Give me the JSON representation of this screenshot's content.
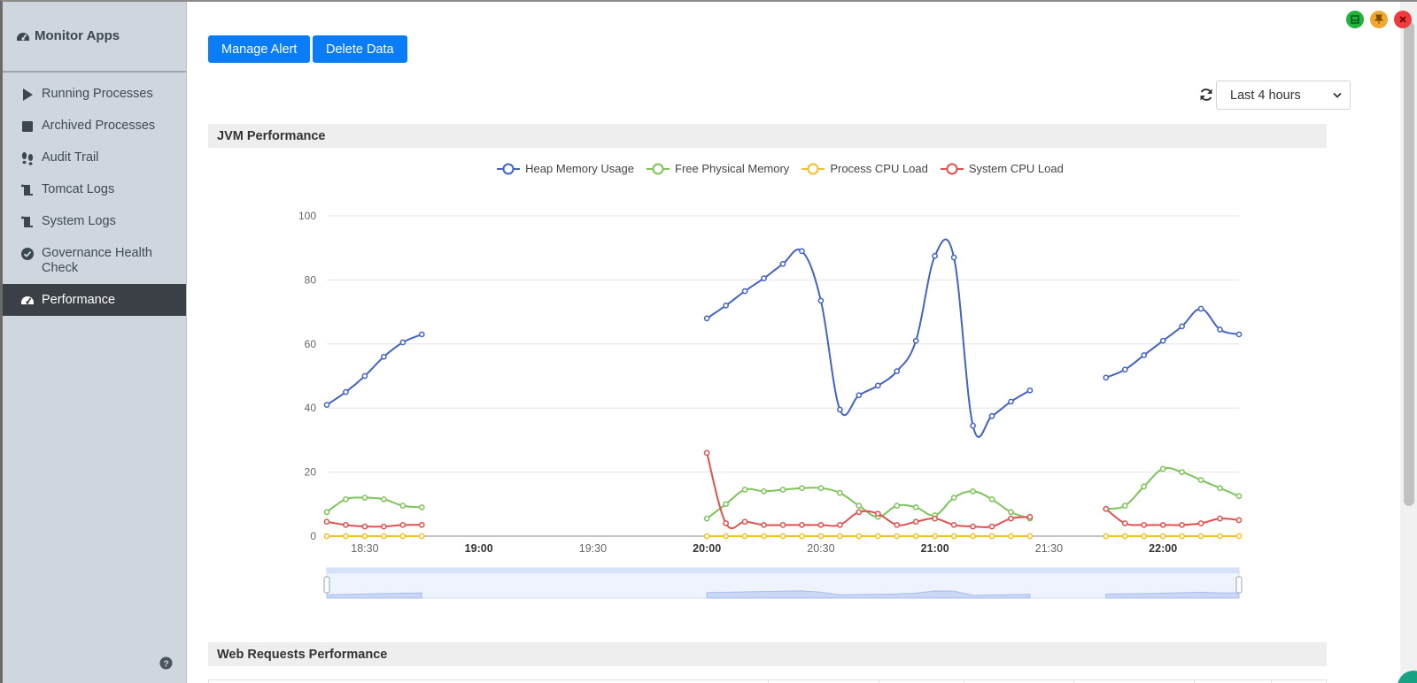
{
  "app": {
    "title": "Monitor Apps"
  },
  "sidebar": {
    "items": [
      {
        "label": "Running Processes",
        "icon": "play-icon"
      },
      {
        "label": "Archived Processes",
        "icon": "stop-icon"
      },
      {
        "label": "Audit Trail",
        "icon": "footprints-icon"
      },
      {
        "label": "Tomcat Logs",
        "icon": "scroll-icon"
      },
      {
        "label": "System Logs",
        "icon": "scroll-icon"
      },
      {
        "label": "Governance Health Check",
        "icon": "check-circle-icon"
      },
      {
        "label": "Performance",
        "icon": "gauge-icon",
        "active": true
      }
    ],
    "help_icon": "question-circle-icon"
  },
  "toolbar": {
    "manage_alert": "Manage Alert",
    "delete_data": "Delete Data"
  },
  "time_range": {
    "selected": "Last 4 hours"
  },
  "panels": {
    "jvm": "JVM Performance",
    "web": "Web Requests Performance"
  },
  "colors": {
    "accent": "#0a7cf5",
    "heap": "#4363c5",
    "free": "#7cc45a",
    "process": "#f5be2e",
    "system": "#e35050"
  },
  "chart_data": {
    "type": "line",
    "x_unit": "time",
    "x_ticks": [
      "18:30",
      "19:00",
      "19:30",
      "20:00",
      "20:30",
      "21:00",
      "21:30",
      "22:00"
    ],
    "ylim": [
      0,
      100
    ],
    "y_ticks": [
      0,
      20,
      40,
      60,
      80,
      100
    ],
    "legend_position": "top-center",
    "series": [
      {
        "name": "Heap Memory Usage",
        "color": "#4363c5",
        "segments": [
          [
            [
              "18:20",
              41
            ],
            [
              "18:25",
              45
            ],
            [
              "18:30",
              50
            ],
            [
              "18:35",
              56
            ],
            [
              "18:40",
              60.5
            ],
            [
              "18:45",
              63
            ]
          ],
          [
            [
              "20:00",
              68
            ],
            [
              "20:05",
              72
            ],
            [
              "20:10",
              76.5
            ],
            [
              "20:15",
              80.5
            ],
            [
              "20:20",
              85
            ],
            [
              "20:25",
              89
            ],
            [
              "20:30",
              73.5
            ],
            [
              "20:35",
              39.5
            ],
            [
              "20:40",
              44
            ],
            [
              "20:45",
              47
            ],
            [
              "20:50",
              51.5
            ],
            [
              "20:55",
              61
            ],
            [
              "21:00",
              87.5
            ],
            [
              "21:05",
              87
            ],
            [
              "21:10",
              34.5
            ],
            [
              "21:15",
              37.5
            ],
            [
              "21:20",
              42
            ],
            [
              "21:25",
              45.5
            ]
          ],
          [
            [
              "21:45",
              49.5
            ],
            [
              "21:50",
              52
            ],
            [
              "21:55",
              56.5
            ],
            [
              "22:00",
              61
            ],
            [
              "22:05",
              65.5
            ],
            [
              "22:10",
              71
            ],
            [
              "22:15",
              64.5
            ],
            [
              "22:20",
              63
            ]
          ]
        ]
      },
      {
        "name": "Free Physical Memory",
        "color": "#7cc45a",
        "segments": [
          [
            [
              "18:20",
              7.5
            ],
            [
              "18:25",
              11.5
            ],
            [
              "18:30",
              12
            ],
            [
              "18:35",
              11.5
            ],
            [
              "18:40",
              9.5
            ],
            [
              "18:45",
              9
            ]
          ],
          [
            [
              "20:00",
              5.5
            ],
            [
              "20:05",
              10
            ],
            [
              "20:10",
              14.5
            ],
            [
              "20:15",
              14
            ],
            [
              "20:20",
              14.5
            ],
            [
              "20:25",
              15
            ],
            [
              "20:30",
              15
            ],
            [
              "20:35",
              13.5
            ],
            [
              "20:40",
              9.5
            ],
            [
              "20:45",
              6
            ],
            [
              "20:50",
              9.5
            ],
            [
              "20:55",
              9
            ],
            [
              "21:00",
              6.5
            ],
            [
              "21:05",
              12
            ],
            [
              "21:10",
              14
            ],
            [
              "21:15",
              11.5
            ],
            [
              "21:20",
              7.5
            ],
            [
              "21:25",
              5.5
            ]
          ],
          [
            [
              "21:45",
              8.5
            ],
            [
              "21:50",
              9.5
            ],
            [
              "21:55",
              15.5
            ],
            [
              "22:00",
              21
            ],
            [
              "22:05",
              20
            ],
            [
              "22:10",
              17.5
            ],
            [
              "22:15",
              15
            ],
            [
              "22:20",
              12.5
            ]
          ]
        ]
      },
      {
        "name": "Process CPU Load",
        "color": "#f5be2e",
        "segments": [
          [
            [
              "18:20",
              0
            ],
            [
              "18:25",
              0
            ],
            [
              "18:30",
              0
            ],
            [
              "18:35",
              0
            ],
            [
              "18:40",
              0
            ],
            [
              "18:45",
              0
            ]
          ],
          [
            [
              "20:00",
              0
            ],
            [
              "20:05",
              0
            ],
            [
              "20:10",
              0
            ],
            [
              "20:15",
              0
            ],
            [
              "20:20",
              0
            ],
            [
              "20:25",
              0
            ],
            [
              "20:30",
              0
            ],
            [
              "20:35",
              0
            ],
            [
              "20:40",
              0
            ],
            [
              "20:45",
              0
            ],
            [
              "20:50",
              0
            ],
            [
              "20:55",
              0
            ],
            [
              "21:00",
              0
            ],
            [
              "21:05",
              0
            ],
            [
              "21:10",
              0
            ],
            [
              "21:15",
              0
            ],
            [
              "21:20",
              0
            ],
            [
              "21:25",
              0
            ]
          ],
          [
            [
              "21:45",
              0
            ],
            [
              "21:50",
              0
            ],
            [
              "21:55",
              0
            ],
            [
              "22:00",
              0
            ],
            [
              "22:05",
              0
            ],
            [
              "22:10",
              0
            ],
            [
              "22:15",
              0
            ],
            [
              "22:20",
              0
            ]
          ]
        ]
      },
      {
        "name": "System CPU Load",
        "color": "#e35050",
        "segments": [
          [
            [
              "18:20",
              4.5
            ],
            [
              "18:25",
              3.5
            ],
            [
              "18:30",
              3
            ],
            [
              "18:35",
              3
            ],
            [
              "18:40",
              3.5
            ],
            [
              "18:45",
              3.5
            ]
          ],
          [
            [
              "20:00",
              26
            ],
            [
              "20:05",
              4
            ],
            [
              "20:10",
              4.5
            ],
            [
              "20:15",
              3.5
            ],
            [
              "20:20",
              3.5
            ],
            [
              "20:25",
              3.5
            ],
            [
              "20:30",
              3.5
            ],
            [
              "20:35",
              3.5
            ],
            [
              "20:40",
              7.5
            ],
            [
              "20:45",
              7
            ],
            [
              "20:50",
              3.5
            ],
            [
              "20:55",
              4.5
            ],
            [
              "21:00",
              5.5
            ],
            [
              "21:05",
              3.5
            ],
            [
              "21:10",
              3
            ],
            [
              "21:15",
              3
            ],
            [
              "21:20",
              5.5
            ],
            [
              "21:25",
              6
            ]
          ],
          [
            [
              "21:45",
              8.5
            ],
            [
              "21:50",
              4
            ],
            [
              "21:55",
              3.5
            ],
            [
              "22:00",
              3.5
            ],
            [
              "22:05",
              3.5
            ],
            [
              "22:10",
              4
            ],
            [
              "22:15",
              5.5
            ],
            [
              "22:20",
              5
            ]
          ]
        ]
      }
    ]
  }
}
